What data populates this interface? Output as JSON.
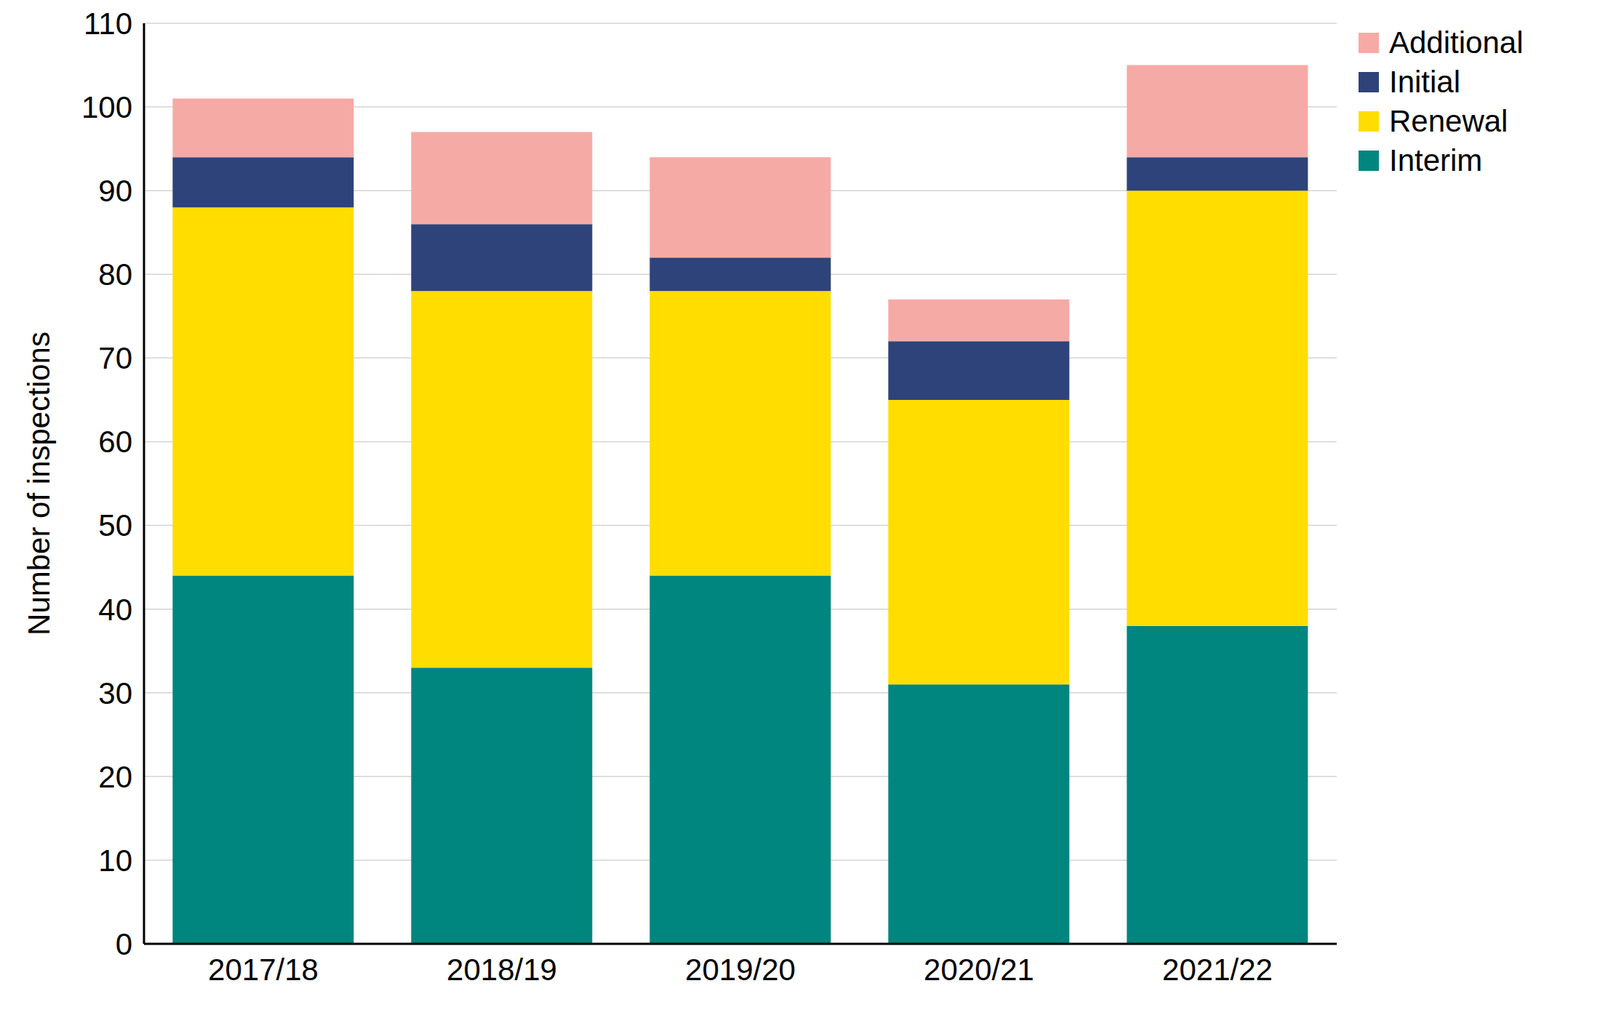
{
  "chart_data": {
    "type": "bar",
    "stacked": true,
    "grid": true,
    "legend": "right",
    "y_label": "Number of inspections",
    "categories": [
      "2017/18",
      "2018/19",
      "2019/20",
      "2020/21",
      "2021/22"
    ],
    "series": [
      {
        "name": "Interim",
        "color": "#00857f",
        "values": [
          44,
          33,
          44,
          31,
          38
        ]
      },
      {
        "name": "Renewal",
        "color": "#ffdd00",
        "values": [
          44,
          45,
          34,
          34,
          52
        ]
      },
      {
        "name": "Initial",
        "color": "#2e4379",
        "values": [
          6,
          8,
          4,
          7,
          4
        ]
      },
      {
        "name": "Additional",
        "color": "#f6aaa6",
        "values": [
          7,
          11,
          12,
          5,
          11
        ]
      }
    ],
    "ylim": [
      0,
      110
    ],
    "yticks": [
      0,
      10,
      20,
      30,
      40,
      50,
      60,
      70,
      80,
      90,
      100,
      110
    ]
  }
}
